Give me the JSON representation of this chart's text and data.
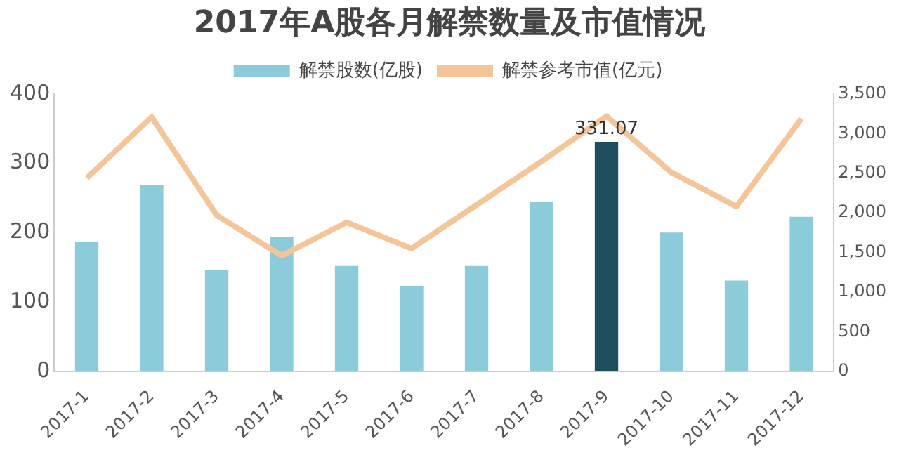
{
  "chart_data": {
    "type": "bar",
    "title": "2017年A股各月解禁数量及市值情况",
    "categories": [
      "2017-1",
      "2017-2",
      "2017-3",
      "2017-4",
      "2017-5",
      "2017-6",
      "2017-7",
      "2017-8",
      "2017-9",
      "2017-10",
      "2017-11",
      "2017-12"
    ],
    "series": [
      {
        "name": "解禁股数(亿股)",
        "color": "#8ccbd9",
        "colors": [
          "#8ccbd9",
          "#8ccbd9",
          "#8ccbd9",
          "#8ccbd9",
          "#8ccbd9",
          "#8ccbd9",
          "#8ccbd9",
          "#8ccbd9",
          "#1d4e5e",
          "#8ccbd9",
          "#8ccbd9",
          "#8ccbd9"
        ],
        "values": [
          187,
          269,
          146,
          194,
          152,
          123,
          152,
          245,
          331.07,
          200,
          131,
          223
        ],
        "value_labels": [
          null,
          null,
          null,
          null,
          null,
          null,
          null,
          null,
          "331.07",
          null,
          null,
          null
        ]
      },
      {
        "name": "解禁参考市值(亿元)",
        "type": "line",
        "axis": "y2",
        "color": "#f5c59a",
        "values": [
          2440,
          3210,
          1970,
          1460,
          1880,
          1550,
          2100,
          2650,
          3220,
          2510,
          2080,
          3190
        ]
      }
    ],
    "ylim": [
      0,
      400
    ],
    "yticks": [
      0,
      100,
      200,
      300,
      400
    ],
    "y2lim": [
      0,
      3500
    ],
    "y2ticks": [
      0,
      {
        "value": 500,
        "label": "500"
      },
      {
        "value": 1000,
        "label": "1,000"
      },
      {
        "value": 1500,
        "label": "1,500"
      },
      {
        "value": 2000,
        "label": "2,000"
      },
      {
        "value": 2500,
        "label": "2,500"
      },
      {
        "value": 3000,
        "label": "3,000"
      },
      {
        "value": 3500,
        "label": "3,500"
      }
    ],
    "legend": "top",
    "grid": false,
    "marker": "none"
  }
}
